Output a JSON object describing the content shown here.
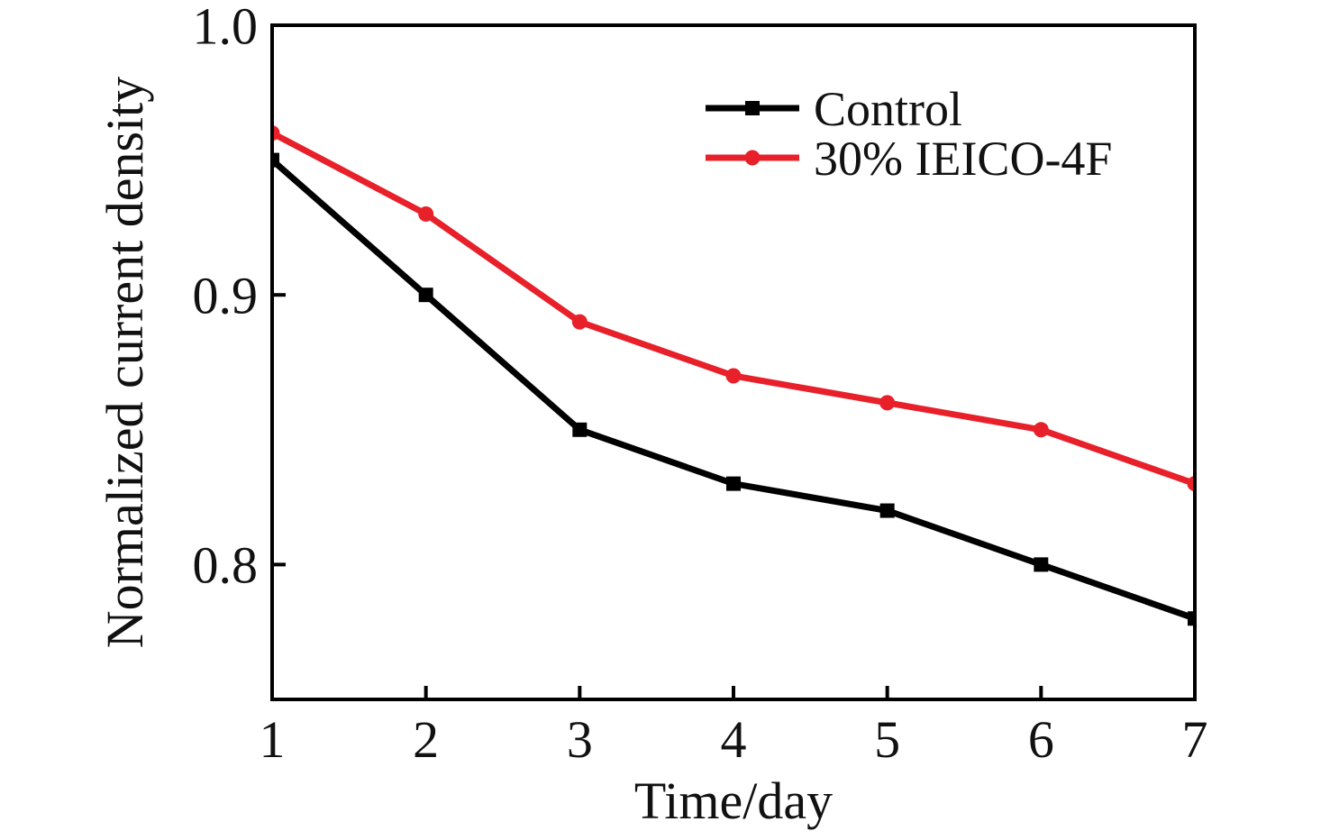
{
  "figure": {
    "background": "#ffffff",
    "axis_color": "#000000",
    "text_color": "#111111"
  },
  "chart_data": {
    "type": "line",
    "x": [
      1,
      2,
      3,
      4,
      5,
      6,
      7
    ],
    "series": [
      {
        "name": "Control",
        "color": "#000000",
        "marker": "square",
        "values": [
          0.95,
          0.9,
          0.85,
          0.83,
          0.82,
          0.8,
          0.78
        ]
      },
      {
        "name": "30% IEICO-4F",
        "color": "#e7202a",
        "marker": "circle",
        "values": [
          0.96,
          0.93,
          0.89,
          0.87,
          0.86,
          0.85,
          0.83
        ]
      }
    ],
    "xlabel": "Time/day",
    "ylabel": "Normalized current density",
    "xlim": [
      1,
      7
    ],
    "ylim": [
      0.75,
      1.0
    ],
    "xticks": {
      "values": [
        1,
        2,
        3,
        4,
        5,
        6,
        7
      ],
      "labels": [
        "1",
        "2",
        "3",
        "4",
        "5",
        "6",
        "7"
      ]
    },
    "yticks": {
      "values": [
        0.8,
        0.9,
        1.0
      ],
      "labels": [
        "0.8",
        "0.9",
        "1.0"
      ]
    },
    "grid": false,
    "legend": {
      "position": "inside-top-right",
      "items": [
        "Control",
        "30% IEICO-4F"
      ]
    }
  }
}
